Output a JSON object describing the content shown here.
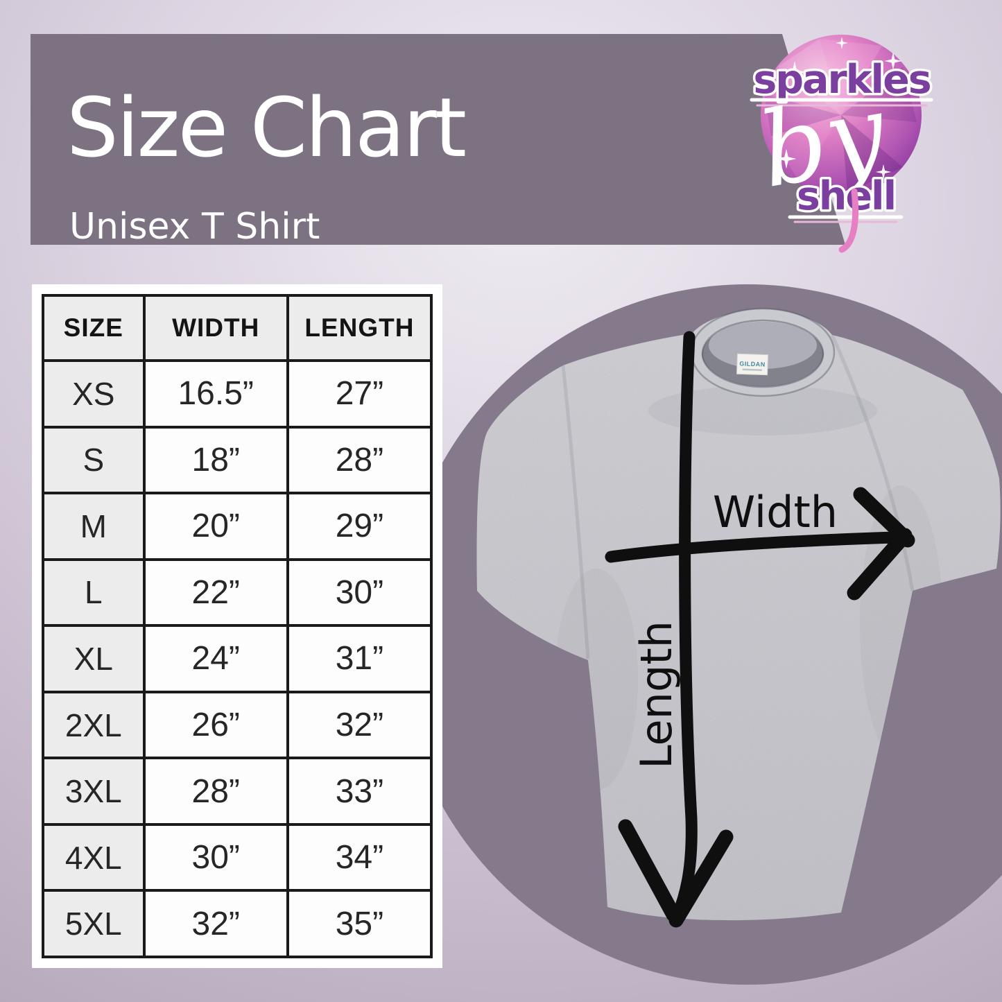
{
  "header": {
    "title": "Size Chart",
    "subtitle": "Unisex T Shirt"
  },
  "brand": {
    "word1": "sparkles",
    "word2": "by",
    "word3": "shell"
  },
  "diagram": {
    "width_label": "Width",
    "length_label": "Length",
    "tag_label": "GILDAN"
  },
  "colors": {
    "band": "#7d7281",
    "circle": "#847a8b",
    "shirt": "#c7c7cd",
    "ink": "#0f0f0f",
    "accent_purple": "#7b3fa0",
    "accent_pink": "#e9a6d4"
  },
  "chart_data": {
    "type": "table",
    "title": "Size Chart",
    "subtitle": "Unisex T Shirt",
    "units": "inches",
    "columns": [
      "SIZE",
      "WIDTH",
      "LENGTH"
    ],
    "rows": [
      [
        "XS",
        "16.5”",
        "27”"
      ],
      [
        "S",
        "18”",
        "28”"
      ],
      [
        "M",
        "20”",
        "29”"
      ],
      [
        "L",
        "22”",
        "30”"
      ],
      [
        "XL",
        "24”",
        "31”"
      ],
      [
        "2XL",
        "26”",
        "32”"
      ],
      [
        "3XL",
        "28”",
        "33”"
      ],
      [
        "4XL",
        "30”",
        "34”"
      ],
      [
        "5XL",
        "32”",
        "35”"
      ]
    ]
  }
}
